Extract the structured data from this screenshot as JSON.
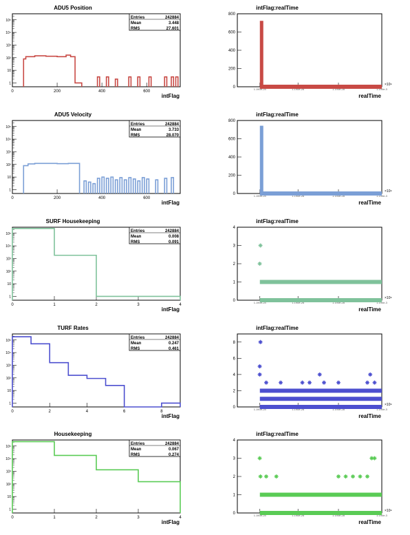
{
  "colors": {
    "adu5_position": "#c84a45",
    "adu5_velocity": "#7b9fd6",
    "surf": "#7fc29b",
    "turf": "#4c4fcf",
    "housekeeping": "#5acb55",
    "axis": "#000000"
  },
  "chart_data": [
    {
      "type": "histogram",
      "title": "ADU5 Position",
      "xlabel": "intFlag",
      "ylabel": "",
      "log_y": true,
      "xlim": [
        0,
        750
      ],
      "ylim": [
        0.5,
        300000
      ],
      "x_ticks": [
        "0",
        "200",
        "400",
        "600"
      ],
      "stats": {
        "entries": "242884",
        "mean": "3.448",
        "rms": "27.601"
      },
      "bins_x": [
        [
          50,
          60
        ],
        [
          60,
          100
        ],
        [
          100,
          150
        ],
        [
          150,
          200
        ],
        [
          200,
          240
        ],
        [
          240,
          260
        ],
        [
          260,
          280
        ],
        [
          280,
          300
        ],
        [
          300,
          310
        ],
        [
          380,
          390
        ],
        [
          420,
          430
        ],
        [
          460,
          470
        ],
        [
          520,
          530
        ],
        [
          560,
          570
        ],
        [
          610,
          620
        ],
        [
          680,
          690
        ],
        [
          710,
          720
        ],
        [
          730,
          740
        ]
      ],
      "values": [
        80,
        120,
        140,
        130,
        120,
        160,
        120,
        1,
        1,
        3,
        3,
        2,
        3,
        3,
        3,
        3,
        3,
        3
      ]
    },
    {
      "type": "scatter",
      "title": "intFlag:realTime",
      "xlabel": "realTime",
      "x_tick_labels": [
        "1.190e-24",
        "1.190e-26",
        "1.190e-28",
        "1.190e-3"
      ],
      "x_exponent": "×10⁹",
      "xlim": [
        0,
        1
      ],
      "ylim": [
        0,
        800
      ],
      "y_ticks": [
        0,
        200,
        400,
        600,
        800
      ],
      "bands": [
        {
          "y": [
            0,
            700
          ],
          "x": [
            0.156,
            0.167
          ]
        },
        {
          "y": [
            0,
            0
          ],
          "x": [
            0.17,
            1.0
          ]
        }
      ]
    },
    {
      "type": "histogram",
      "title": "ADU5 Velocity",
      "xlabel": "intFlag",
      "ylabel": "",
      "log_y": true,
      "xlim": [
        0,
        750
      ],
      "ylim": [
        0.5,
        300000
      ],
      "x_ticks": [
        "0",
        "200",
        "400",
        "600"
      ],
      "stats": {
        "entries": "242884",
        "mean": "3.733",
        "rms": "28.070"
      },
      "bins_x": [
        [
          50,
          70
        ],
        [
          70,
          100
        ],
        [
          100,
          150
        ],
        [
          150,
          200
        ],
        [
          200,
          250
        ],
        [
          250,
          300
        ],
        [
          320,
          330
        ],
        [
          340,
          350
        ],
        [
          360,
          370
        ],
        [
          380,
          390
        ],
        [
          400,
          410
        ],
        [
          420,
          430
        ],
        [
          440,
          450
        ],
        [
          460,
          470
        ],
        [
          480,
          490
        ],
        [
          500,
          510
        ],
        [
          520,
          530
        ],
        [
          540,
          550
        ],
        [
          560,
          570
        ],
        [
          580,
          590
        ],
        [
          600,
          610
        ],
        [
          640,
          650
        ],
        [
          680,
          690
        ],
        [
          710,
          720
        ]
      ],
      "values": [
        80,
        110,
        120,
        120,
        115,
        120,
        5,
        4,
        3,
        8,
        10,
        8,
        10,
        6,
        9,
        6,
        9,
        7,
        5,
        9,
        7,
        6,
        8,
        9
      ]
    },
    {
      "type": "scatter",
      "title": "intFlag:realTime",
      "xlabel": "realTime",
      "x_tick_labels": [
        "1.190e-24",
        "1.190e-26",
        "1.190e-28",
        "1.190e-3"
      ],
      "x_exponent": "×10⁹",
      "xlim": [
        0,
        1
      ],
      "ylim": [
        0,
        800
      ],
      "y_ticks": [
        0,
        200,
        400,
        600,
        800
      ],
      "bands": [
        {
          "y": [
            0,
            720
          ],
          "x": [
            0.156,
            0.167
          ]
        },
        {
          "y": [
            0,
            0
          ],
          "x": [
            0.17,
            1.0
          ]
        }
      ]
    },
    {
      "type": "histogram",
      "title": "SURF Housekeeping",
      "xlabel": "intFlag",
      "ylabel": "",
      "log_y": true,
      "xlim": [
        0,
        4
      ],
      "ylim": [
        0.5,
        300000
      ],
      "x_ticks": [
        "0",
        "1",
        "2",
        "3",
        "4"
      ],
      "stats": {
        "entries": "242884",
        "mean": "0.008",
        "rms": "0.091"
      },
      "bins_x": [
        [
          0,
          1
        ],
        [
          1,
          2
        ],
        [
          2,
          4
        ]
      ],
      "values": [
        240000,
        1800,
        1
      ]
    },
    {
      "type": "scatter",
      "title": "intFlag:realTime",
      "xlabel": "realTime",
      "x_tick_labels": [
        "1.190e-24",
        "1.190e-26",
        "1.190e-28",
        "1.190e-3"
      ],
      "x_exponent": "×10⁹",
      "xlim": [
        0,
        1
      ],
      "ylim": [
        0,
        4
      ],
      "y_ticks": [
        0,
        1,
        2,
        3,
        4
      ],
      "bands": [
        {
          "y": [
            0,
            0
          ],
          "x": [
            0.156,
            1.0
          ]
        },
        {
          "y": [
            1,
            1
          ],
          "x": [
            0.156,
            1.0
          ]
        }
      ],
      "points": [
        [
          0.16,
          3
        ],
        [
          0.155,
          2
        ]
      ]
    },
    {
      "type": "histogram",
      "title": "TURF Rates",
      "xlabel": "intFlag",
      "ylabel": "",
      "log_y": true,
      "xlim": [
        0,
        9
      ],
      "ylim": [
        0.5,
        300000
      ],
      "x_ticks": [
        "0",
        "2",
        "4",
        "6",
        "8"
      ],
      "stats": {
        "entries": "242884",
        "mean": "0.247",
        "rms": "0.461"
      },
      "bins_x": [
        [
          0,
          1
        ],
        [
          1,
          2
        ],
        [
          2,
          3
        ],
        [
          3,
          4
        ],
        [
          4,
          5
        ],
        [
          5,
          6
        ],
        [
          6,
          8
        ],
        [
          8,
          9
        ]
      ],
      "values": [
        180000,
        50000,
        1600,
        160,
        90,
        25,
        0.5,
        1
      ]
    },
    {
      "type": "scatter",
      "title": "intFlag:realTime",
      "xlabel": "realTime",
      "x_tick_labels": [
        "1.190e-24",
        "1.190e-26",
        "1.190e-28",
        "1.190e-3"
      ],
      "x_exponent": "×10⁹",
      "xlim": [
        0,
        1
      ],
      "ylim": [
        0,
        9
      ],
      "y_ticks": [
        0,
        2,
        4,
        6,
        8
      ],
      "bands": [
        {
          "y": [
            0,
            0
          ],
          "x": [
            0.156,
            1.0
          ]
        },
        {
          "y": [
            1,
            1
          ],
          "x": [
            0.156,
            1.0
          ]
        },
        {
          "y": [
            2,
            2
          ],
          "x": [
            0.156,
            1.0
          ]
        }
      ],
      "points": [
        [
          0.16,
          8
        ],
        [
          0.155,
          5
        ],
        [
          0.155,
          4
        ],
        [
          0.2,
          3
        ],
        [
          0.3,
          3
        ],
        [
          0.45,
          3
        ],
        [
          0.5,
          3
        ],
        [
          0.6,
          3
        ],
        [
          0.7,
          3
        ],
        [
          0.9,
          3
        ],
        [
          0.95,
          3
        ],
        [
          0.57,
          4
        ],
        [
          0.92,
          4
        ]
      ]
    },
    {
      "type": "histogram",
      "title": "Housekeeping",
      "xlabel": "intFlag",
      "ylabel": "",
      "log_y": true,
      "xlim": [
        0,
        4
      ],
      "ylim": [
        0.5,
        300000
      ],
      "x_ticks": [
        "0",
        "1",
        "2",
        "3",
        "4"
      ],
      "stats": {
        "entries": "242884",
        "mean": "0.067",
        "rms": "0.274"
      },
      "bins_x": [
        [
          0,
          1
        ],
        [
          1,
          2
        ],
        [
          2,
          3
        ],
        [
          3,
          4
        ]
      ],
      "values": [
        220000,
        18000,
        1300,
        150
      ]
    },
    {
      "type": "scatter",
      "title": "intFlag:realTime",
      "xlabel": "realTime",
      "x_tick_labels": [
        "1.190e-24",
        "1.190e-26",
        "1.190e-28",
        "1.190e-3"
      ],
      "x_exponent": "×10⁹",
      "xlim": [
        0,
        1
      ],
      "ylim": [
        0,
        4
      ],
      "y_ticks": [
        0,
        1,
        2,
        3,
        4
      ],
      "bands": [
        {
          "y": [
            0,
            0
          ],
          "x": [
            0.156,
            1.0
          ]
        },
        {
          "y": [
            1,
            1
          ],
          "x": [
            0.156,
            1.0
          ]
        }
      ],
      "points": [
        [
          0.155,
          3
        ],
        [
          0.16,
          2
        ],
        [
          0.2,
          2
        ],
        [
          0.27,
          2
        ],
        [
          0.7,
          2
        ],
        [
          0.75,
          2
        ],
        [
          0.8,
          2
        ],
        [
          0.85,
          2
        ],
        [
          0.9,
          2
        ],
        [
          0.93,
          3
        ],
        [
          0.95,
          3
        ]
      ]
    }
  ]
}
